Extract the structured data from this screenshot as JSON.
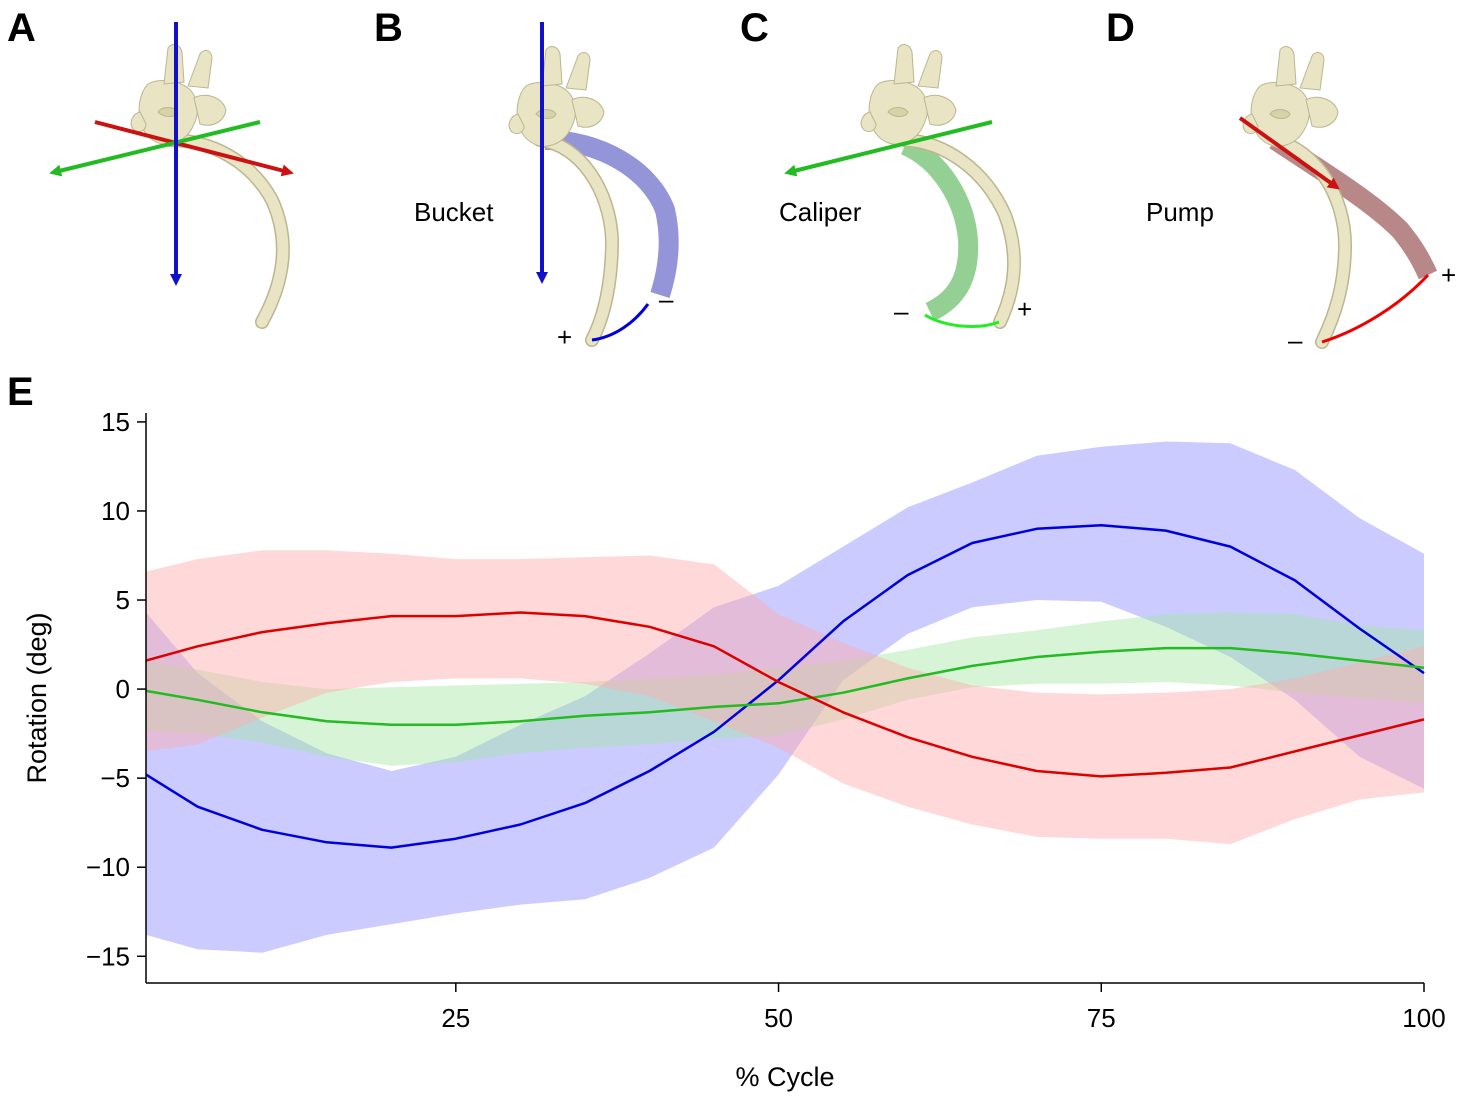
{
  "panels": {
    "A": {
      "letter": "A"
    },
    "B": {
      "letter": "B",
      "mode_label": "Bucket",
      "minus": "–",
      "plus": "+"
    },
    "C": {
      "letter": "C",
      "mode_label": "Caliper",
      "minus": "–",
      "plus": "+"
    },
    "D": {
      "letter": "D",
      "mode_label": "Pump",
      "minus": "–",
      "plus": "+"
    },
    "E": {
      "letter": "E"
    }
  },
  "colors": {
    "bone": "#e8e4c4",
    "bone_stroke": "#bcb690",
    "bucket": "#0000dd",
    "caliper": "#22bb22",
    "pump": "#dd0000"
  },
  "chart_data": {
    "type": "line",
    "xlabel": "% Cycle",
    "ylabel": "Rotation (deg)",
    "xlim": [
      1,
      100
    ],
    "ylim": [
      -16.5,
      15.5
    ],
    "xticks": [
      25,
      50,
      75,
      100
    ],
    "yticks": [
      15,
      10,
      5,
      0,
      -5,
      -10,
      -15
    ],
    "ytick_labels": [
      "15",
      "10",
      "5",
      "0",
      "−5",
      "−10",
      "−15"
    ],
    "grid": false,
    "series": [
      {
        "color": "#0000dd",
        "band_color": "#8c8cff",
        "x": [
          1,
          5,
          10,
          15,
          20,
          25,
          30,
          35,
          40,
          45,
          50,
          55,
          60,
          65,
          70,
          75,
          80,
          85,
          90,
          95,
          100
        ],
        "values": [
          -4.8,
          -6.6,
          -7.9,
          -8.6,
          -8.9,
          -8.4,
          -7.6,
          -6.4,
          -4.6,
          -2.4,
          0.5,
          3.8,
          6.4,
          8.2,
          9.0,
          9.2,
          8.9,
          8.0,
          6.1,
          3.4,
          0.9
        ],
        "lower": [
          -13.8,
          -14.6,
          -14.8,
          -13.8,
          -13.2,
          -12.6,
          -12.1,
          -11.8,
          -10.6,
          -8.9,
          -4.8,
          0.5,
          3.1,
          4.6,
          5.0,
          4.9,
          3.5,
          1.8,
          -0.6,
          -3.8,
          -5.6
        ],
        "upper": [
          4.3,
          0.9,
          -1.8,
          -3.6,
          -4.6,
          -3.8,
          -2.0,
          -0.4,
          2.0,
          4.6,
          5.8,
          8.0,
          10.2,
          11.6,
          13.1,
          13.6,
          13.9,
          13.8,
          12.3,
          9.6,
          7.6
        ]
      },
      {
        "color": "#22bb22",
        "band_color": "#a6e6a6",
        "x": [
          1,
          5,
          10,
          15,
          20,
          25,
          30,
          35,
          40,
          45,
          50,
          55,
          60,
          65,
          70,
          75,
          80,
          85,
          90,
          95,
          100
        ],
        "values": [
          -0.1,
          -0.6,
          -1.3,
          -1.8,
          -2.0,
          -2.0,
          -1.8,
          -1.5,
          -1.3,
          -1.0,
          -0.8,
          -0.2,
          0.6,
          1.3,
          1.8,
          2.1,
          2.3,
          2.3,
          2.0,
          1.6,
          1.2
        ],
        "lower": [
          -2.3,
          -2.5,
          -3.0,
          -3.8,
          -4.3,
          -4.1,
          -3.6,
          -3.3,
          -3.1,
          -2.8,
          -2.6,
          -1.7,
          -0.6,
          0.1,
          0.3,
          0.3,
          0.4,
          0.2,
          -0.2,
          -0.5,
          -0.8
        ],
        "upper": [
          1.6,
          1.1,
          0.4,
          0.0,
          0.1,
          0.2,
          0.3,
          0.4,
          0.6,
          0.8,
          1.2,
          1.6,
          2.2,
          2.9,
          3.3,
          3.8,
          4.2,
          4.3,
          4.2,
          3.6,
          3.3
        ]
      },
      {
        "color": "#dd0000",
        "band_color": "#ffaaaa",
        "x": [
          1,
          5,
          10,
          15,
          20,
          25,
          30,
          35,
          40,
          45,
          50,
          55,
          60,
          65,
          70,
          75,
          80,
          85,
          90,
          95,
          100
        ],
        "values": [
          1.6,
          2.4,
          3.2,
          3.7,
          4.1,
          4.1,
          4.3,
          4.1,
          3.5,
          2.4,
          0.4,
          -1.3,
          -2.7,
          -3.8,
          -4.6,
          -4.9,
          -4.7,
          -4.4,
          -3.5,
          -2.6,
          -1.7
        ],
        "lower": [
          -3.5,
          -3.1,
          -1.6,
          -0.2,
          0.4,
          0.6,
          0.6,
          0.3,
          -0.4,
          -1.8,
          -3.3,
          -5.3,
          -6.6,
          -7.6,
          -8.3,
          -8.4,
          -8.4,
          -8.7,
          -7.3,
          -6.2,
          -5.8
        ],
        "upper": [
          6.6,
          7.3,
          7.8,
          7.8,
          7.6,
          7.3,
          7.3,
          7.4,
          7.5,
          7.0,
          4.2,
          2.6,
          1.2,
          0.2,
          -0.2,
          -0.3,
          -0.2,
          0.0,
          0.6,
          1.5,
          2.4
        ]
      }
    ]
  }
}
